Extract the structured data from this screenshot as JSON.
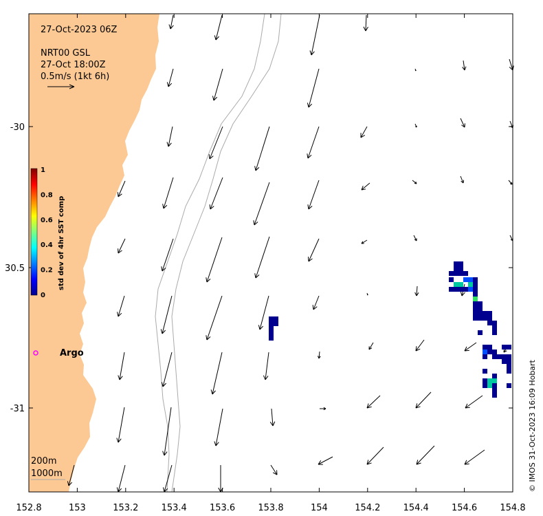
{
  "map": {
    "date_label": "27-Oct-2023 06Z",
    "product_label": "NRT00 GSL",
    "product_time": "27-Oct 18:00Z",
    "scale_label": "0.5m/s (1kt 6h)",
    "credit": "© IMOS 31-Oct-2023 16:09 Hobart",
    "argo_label": "Argo",
    "argo_lon": 152.83,
    "argo_lat": -30.81,
    "contour_labels": [
      "200m",
      "1000m"
    ],
    "land_color": "#fcc994",
    "argo_color": "#ff00ff",
    "lon_range": [
      152.8,
      154.8
    ],
    "lat_range": [
      -29.6,
      -31.3
    ],
    "x_ticks": [
      "152.8",
      "153",
      "153.2",
      "153.4",
      "153.6",
      "153.8",
      "154",
      "154.2",
      "154.4",
      "154.6",
      "154.8"
    ],
    "y_ticks": [
      "-30",
      "30.5",
      "-31"
    ]
  },
  "colorbar": {
    "title": "std dev of 4hr SST comp",
    "ticks": [
      "1",
      "0.8",
      "0.6",
      "0.4",
      "0.2",
      "0"
    ],
    "colormap": "jet"
  }
}
